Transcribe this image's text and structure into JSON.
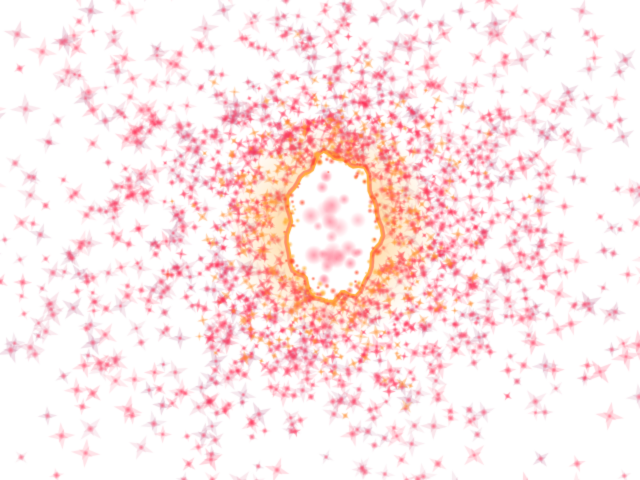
{
  "scene": {
    "background_color": "#ffffff",
    "core_color": "#ffffff",
    "core_rim_color": "#ff4a2a",
    "core_glow_color": "#ffb03a",
    "inner_spark_color": "#ff8a2a",
    "particle_hot_color": "#ff2e55",
    "particle_warm_color": "#ff5a78",
    "particle_cool_color": "#b84a7a",
    "particle_soft_color": "#e07090",
    "particle_shape": "four-point-star",
    "particle_count": 1400
  }
}
